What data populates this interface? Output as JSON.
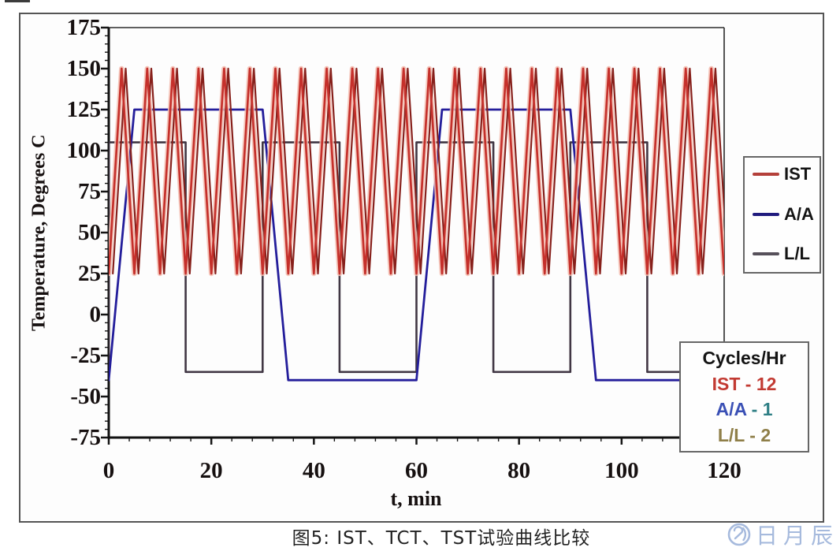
{
  "figure": {
    "caption": "图5: IST、TCT、TST试验曲线比较",
    "watermark": {
      "text": "日月辰",
      "color": "#a6badd",
      "logo": "sun-moon-circle-logo"
    }
  },
  "chart_data": {
    "type": "line",
    "title": "",
    "xlabel": "t, min",
    "ylabel": "Temperature, Degrees C",
    "xlim": [
      0,
      120
    ],
    "ylim": [
      -75,
      175
    ],
    "x_major_ticks": [
      0,
      20,
      40,
      60,
      80,
      100,
      120
    ],
    "x_minor_step": 4,
    "y_major_ticks": [
      175,
      150,
      125,
      100,
      75,
      50,
      25,
      0,
      -25,
      -50,
      -75
    ],
    "y_minor_step": 5,
    "grid": false,
    "legend_position": "right-outside",
    "series": [
      {
        "name": "IST",
        "waveform": "triangle",
        "cycles_per_hr": 12,
        "period_min": 5,
        "min_c": 25,
        "max_c": 150,
        "start_t": 0,
        "end_t": 120,
        "color": "#c5302b",
        "halo_color": "#f3bdb0",
        "echo_color": "#87201b",
        "echo_offset_min": 0.8
      },
      {
        "name": "A/A",
        "waveform": "trapezoid",
        "cycles_per_hr": 1,
        "min_c": -40,
        "max_c": 125,
        "color": "#241e9b",
        "points": [
          [
            0,
            -40
          ],
          [
            5,
            125
          ],
          [
            30,
            125
          ],
          [
            35,
            -40
          ],
          [
            60,
            -40
          ],
          [
            65,
            125
          ],
          [
            90,
            125
          ],
          [
            95,
            -40
          ],
          [
            120,
            -40
          ]
        ]
      },
      {
        "name": "L/L",
        "waveform": "square",
        "cycles_per_hr": 2,
        "min_c": -35,
        "max_c": 105,
        "color": "#413744",
        "points": [
          [
            0,
            -35
          ],
          [
            0,
            105
          ],
          [
            15,
            105
          ],
          [
            15,
            -35
          ],
          [
            30,
            -35
          ],
          [
            30,
            105
          ],
          [
            45,
            105
          ],
          [
            45,
            -35
          ],
          [
            60,
            -35
          ],
          [
            60,
            105
          ],
          [
            75,
            105
          ],
          [
            75,
            -35
          ],
          [
            90,
            -35
          ],
          [
            90,
            105
          ],
          [
            105,
            105
          ],
          [
            105,
            -35
          ],
          [
            120,
            -35
          ]
        ]
      }
    ]
  },
  "legend": {
    "items": [
      {
        "label": "IST",
        "color": "#b4403a"
      },
      {
        "label": "A/A",
        "color": "#201b7e"
      },
      {
        "label": "L/L",
        "color": "#56505a"
      }
    ]
  },
  "cycles_box": {
    "title": "Cycles/Hr",
    "rows": [
      {
        "label": "IST",
        "rest": " - 12",
        "label_color": "#c23a32",
        "rest_color": "#c23a32"
      },
      {
        "label": "A/A",
        "rest": " - 1",
        "label_color": "#3a50b5",
        "rest_color": "#2f7f85"
      },
      {
        "label": "L/L",
        "rest": " - 2",
        "label_color": "#8f7f49",
        "rest_color": "#8f7f49"
      }
    ]
  }
}
